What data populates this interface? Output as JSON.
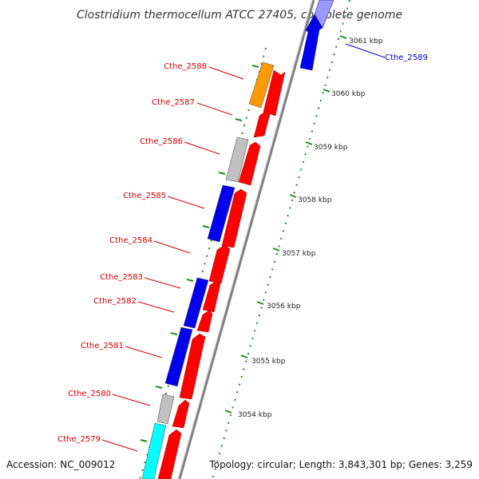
{
  "title": "Clostridium thermocellum ATCC 27405, complete genome",
  "accession": "Accession: NC_009012",
  "topology": "Topology: circular; Length: 3,843,301 bp; Genes: 3,259",
  "colors": {
    "cds_red": "#ff0000",
    "blue": "#0000ee",
    "gray": "#c0c0c0",
    "orange": "#ff9900",
    "cyan": "#00ffff",
    "backbone": "#808080",
    "tick": "#228b22",
    "label_red": "#cc0000",
    "label_blue": "#0000cc"
  },
  "kbp_labels": [
    "3061 kbp",
    "3060 kbp",
    "3059 kbp",
    "3058 kbp",
    "3057 kbp",
    "3056 kbp",
    "3055 kbp",
    "3054 kbp"
  ],
  "gene_labels": [
    {
      "name": "Cthe_2589",
      "color": "blue"
    },
    {
      "name": "Cthe_2588",
      "color": "red"
    },
    {
      "name": "Cthe_2587",
      "color": "red"
    },
    {
      "name": "Cthe_2586",
      "color": "red"
    },
    {
      "name": "Cthe_2585",
      "color": "red"
    },
    {
      "name": "Cthe_2584",
      "color": "red"
    },
    {
      "name": "Cthe_2583",
      "color": "red"
    },
    {
      "name": "Cthe_2582",
      "color": "red"
    },
    {
      "name": "Cthe_2581",
      "color": "red"
    },
    {
      "name": "Cthe_2580",
      "color": "red"
    },
    {
      "name": "Cthe_2579",
      "color": "red"
    }
  ]
}
